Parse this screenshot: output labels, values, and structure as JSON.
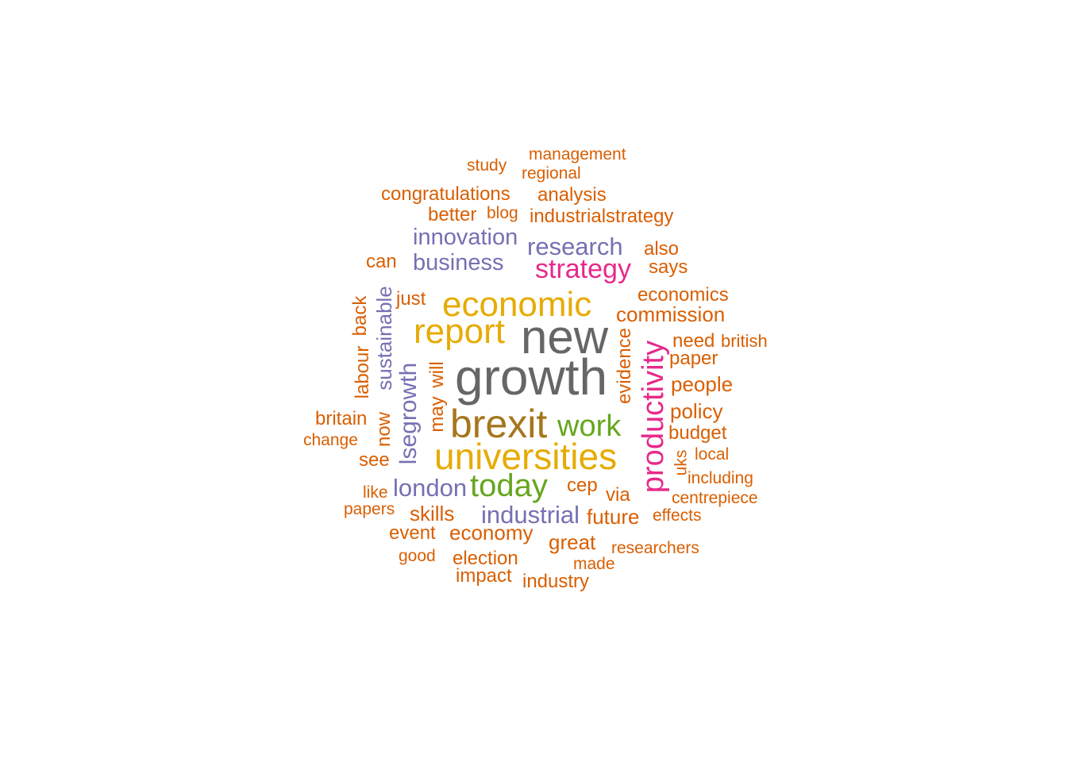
{
  "word_cloud": {
    "words": [
      {
        "id": "study",
        "text": "study",
        "color": "orange"
      },
      {
        "id": "management",
        "text": "management",
        "color": "orange"
      },
      {
        "id": "regional",
        "text": "regional",
        "color": "orange"
      },
      {
        "id": "congratulations",
        "text": "congratulations",
        "color": "orange"
      },
      {
        "id": "analysis",
        "text": "analysis",
        "color": "orange"
      },
      {
        "id": "better",
        "text": "better",
        "color": "orange"
      },
      {
        "id": "blog",
        "text": "blog",
        "color": "orange"
      },
      {
        "id": "industrialstrategy",
        "text": "industrialstrategy",
        "color": "orange"
      },
      {
        "id": "innovation",
        "text": "innovation",
        "color": "purple"
      },
      {
        "id": "research",
        "text": "research",
        "color": "purple"
      },
      {
        "id": "also",
        "text": "also",
        "color": "orange"
      },
      {
        "id": "can",
        "text": "can",
        "color": "orange"
      },
      {
        "id": "business",
        "text": "business",
        "color": "purple"
      },
      {
        "id": "strategy",
        "text": "strategy",
        "color": "pink"
      },
      {
        "id": "says",
        "text": "says",
        "color": "orange"
      },
      {
        "id": "just",
        "text": "just",
        "color": "orange"
      },
      {
        "id": "economic",
        "text": "economic",
        "color": "gold"
      },
      {
        "id": "economics",
        "text": "economics",
        "color": "orange"
      },
      {
        "id": "commission",
        "text": "commission",
        "color": "orange"
      },
      {
        "id": "report",
        "text": "report",
        "color": "gold"
      },
      {
        "id": "new",
        "text": "new",
        "color": "grey"
      },
      {
        "id": "need",
        "text": "need",
        "color": "orange"
      },
      {
        "id": "british",
        "text": "british",
        "color": "orange"
      },
      {
        "id": "paper",
        "text": "paper",
        "color": "orange"
      },
      {
        "id": "growth",
        "text": "growth",
        "color": "grey"
      },
      {
        "id": "people",
        "text": "people",
        "color": "orange"
      },
      {
        "id": "policy",
        "text": "policy",
        "color": "orange"
      },
      {
        "id": "britain",
        "text": "britain",
        "color": "orange"
      },
      {
        "id": "brexit",
        "text": "brexit",
        "color": "bronze"
      },
      {
        "id": "work",
        "text": "work",
        "color": "green"
      },
      {
        "id": "budget",
        "text": "budget",
        "color": "orange"
      },
      {
        "id": "change",
        "text": "change",
        "color": "orange"
      },
      {
        "id": "universities",
        "text": "universities",
        "color": "gold"
      },
      {
        "id": "local",
        "text": "local",
        "color": "orange"
      },
      {
        "id": "see",
        "text": "see",
        "color": "orange"
      },
      {
        "id": "including",
        "text": "including",
        "color": "orange"
      },
      {
        "id": "today",
        "text": "today",
        "color": "green"
      },
      {
        "id": "london",
        "text": "london",
        "color": "purple"
      },
      {
        "id": "cep",
        "text": "cep",
        "color": "orange"
      },
      {
        "id": "via",
        "text": "via",
        "color": "orange"
      },
      {
        "id": "like",
        "text": "like",
        "color": "orange"
      },
      {
        "id": "centrepiece",
        "text": "centrepiece",
        "color": "orange"
      },
      {
        "id": "papers",
        "text": "papers",
        "color": "orange"
      },
      {
        "id": "skills",
        "text": "skills",
        "color": "orange"
      },
      {
        "id": "industrial",
        "text": "industrial",
        "color": "purple"
      },
      {
        "id": "future",
        "text": "future",
        "color": "orange"
      },
      {
        "id": "effects",
        "text": "effects",
        "color": "orange"
      },
      {
        "id": "event",
        "text": "event",
        "color": "orange"
      },
      {
        "id": "economy",
        "text": "economy",
        "color": "orange"
      },
      {
        "id": "great",
        "text": "great",
        "color": "orange"
      },
      {
        "id": "researchers",
        "text": "researchers",
        "color": "orange"
      },
      {
        "id": "good",
        "text": "good",
        "color": "orange"
      },
      {
        "id": "election",
        "text": "election",
        "color": "orange"
      },
      {
        "id": "made",
        "text": "made",
        "color": "orange"
      },
      {
        "id": "impact",
        "text": "impact",
        "color": "orange"
      },
      {
        "id": "industry",
        "text": "industry",
        "color": "orange"
      },
      {
        "id": "back",
        "text": "back",
        "color": "orange"
      },
      {
        "id": "labour",
        "text": "labour",
        "color": "orange"
      },
      {
        "id": "sustainable",
        "text": "sustainable",
        "color": "purple"
      },
      {
        "id": "now",
        "text": "now",
        "color": "orange"
      },
      {
        "id": "lsegrowth",
        "text": "lsegrowth",
        "color": "purple"
      },
      {
        "id": "will",
        "text": "will",
        "color": "orange"
      },
      {
        "id": "may",
        "text": "may",
        "color": "orange"
      },
      {
        "id": "evidence",
        "text": "evidence",
        "color": "orange"
      },
      {
        "id": "productivity",
        "text": "productivity",
        "color": "pink"
      },
      {
        "id": "uks",
        "text": "uks",
        "color": "orange"
      }
    ]
  }
}
